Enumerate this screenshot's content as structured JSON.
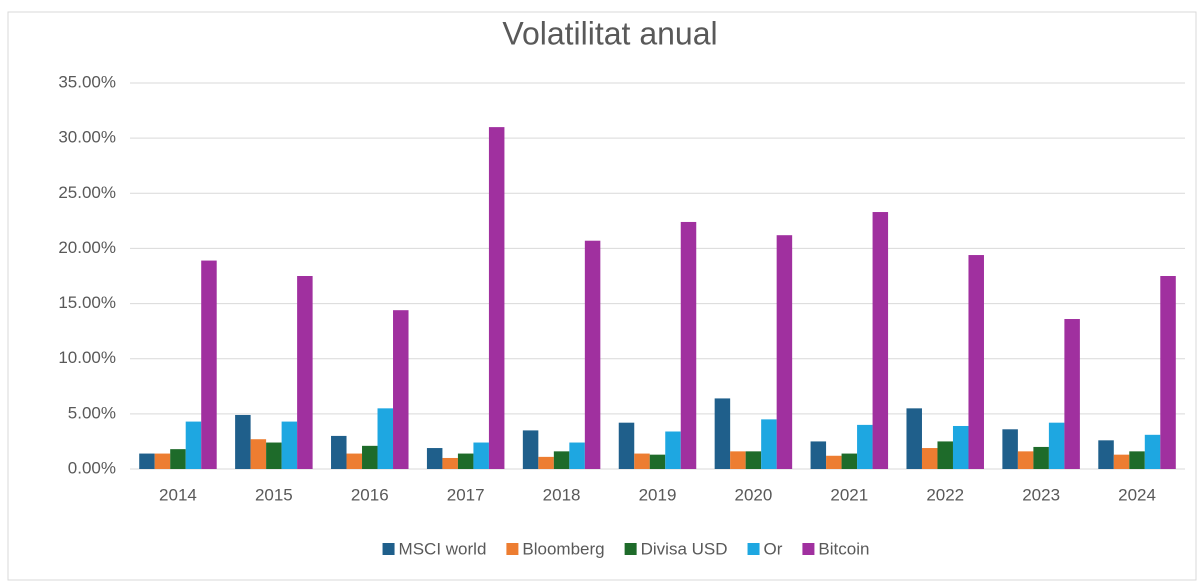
{
  "chart_data": {
    "type": "bar",
    "title": "Volatilitat anual",
    "categories": [
      "2014",
      "2015",
      "2016",
      "2017",
      "2018",
      "2019",
      "2020",
      "2021",
      "2022",
      "2023",
      "2024"
    ],
    "series": [
      {
        "name": "MSCI world",
        "color": "#1f5f8b",
        "values": [
          1.4,
          4.9,
          3.0,
          1.9,
          3.5,
          4.2,
          6.4,
          2.5,
          5.5,
          3.6,
          2.6
        ]
      },
      {
        "name": "Bloomberg",
        "color": "#ed7d31",
        "values": [
          1.4,
          2.7,
          1.4,
          1.0,
          1.1,
          1.4,
          1.6,
          1.2,
          1.9,
          1.6,
          1.3
        ]
      },
      {
        "name": "Divisa USD",
        "color": "#1e6b2a",
        "values": [
          1.8,
          2.4,
          2.1,
          1.4,
          1.6,
          1.3,
          1.6,
          1.4,
          2.5,
          2.0,
          1.6
        ]
      },
      {
        "name": "Or",
        "color": "#1ea7e1",
        "values": [
          4.3,
          4.3,
          5.5,
          2.4,
          2.4,
          3.4,
          4.5,
          4.0,
          3.9,
          4.2,
          3.1
        ]
      },
      {
        "name": "Bitcoin",
        "color": "#a0309f",
        "values": [
          18.9,
          17.5,
          14.4,
          31.0,
          20.7,
          22.4,
          21.2,
          23.3,
          19.4,
          13.6,
          17.5
        ]
      }
    ],
    "ylim": [
      0,
      35
    ],
    "yticks": [
      {
        "value": 0,
        "label": "0.00%"
      },
      {
        "value": 5,
        "label": "5.00%"
      },
      {
        "value": 10,
        "label": "10.00%"
      },
      {
        "value": 15,
        "label": "15.00%"
      },
      {
        "value": 20,
        "label": "20.00%"
      },
      {
        "value": 25,
        "label": "25.00%"
      },
      {
        "value": 30,
        "label": "30.00%"
      },
      {
        "value": 35,
        "label": "35.00%"
      }
    ],
    "grid": true,
    "legend": "bottom"
  }
}
